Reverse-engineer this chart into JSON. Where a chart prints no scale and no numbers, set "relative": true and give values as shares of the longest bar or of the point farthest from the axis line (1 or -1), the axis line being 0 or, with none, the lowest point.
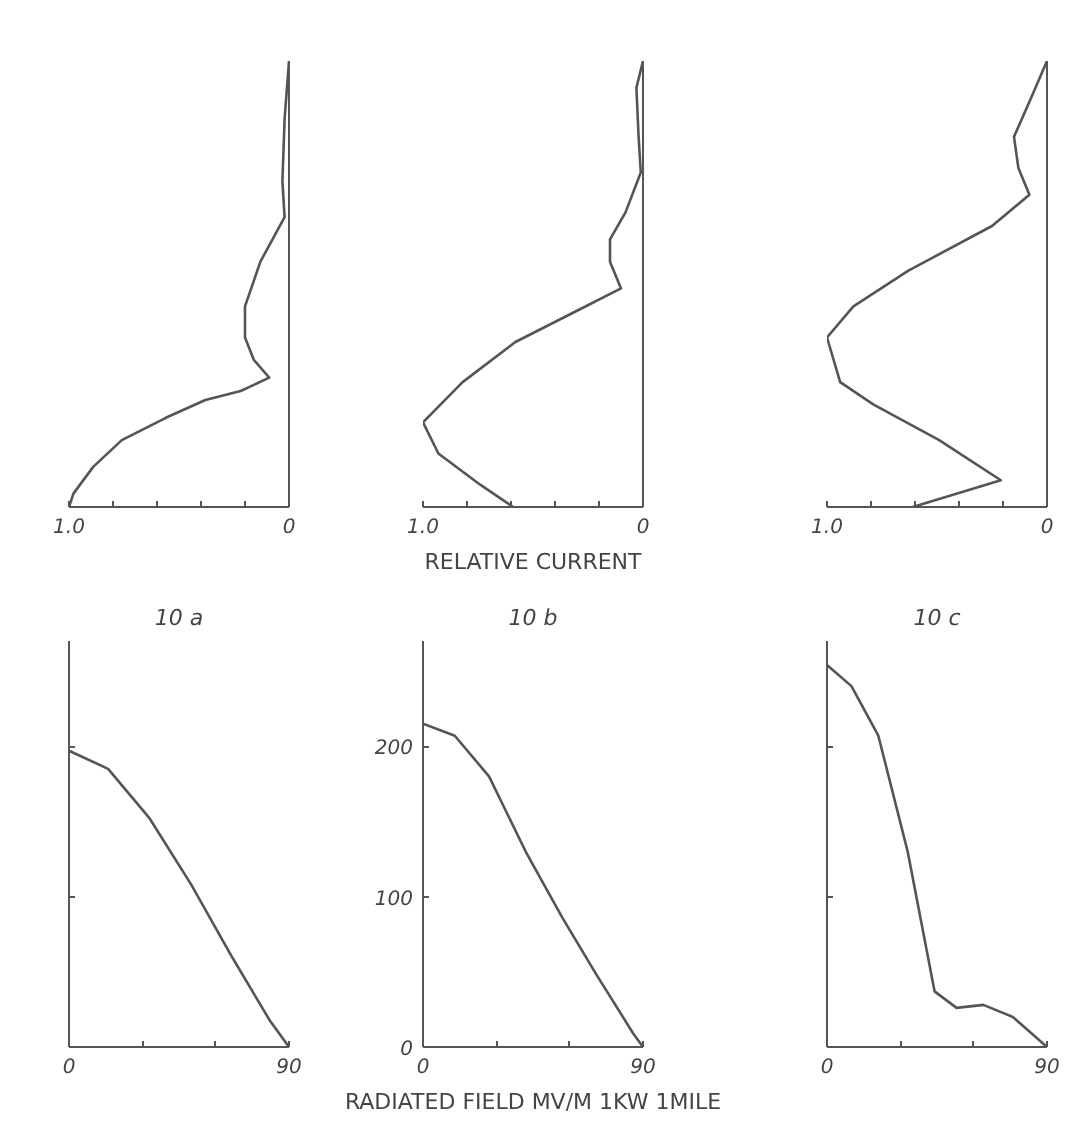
{
  "chart_data": [
    {
      "type": "line",
      "relative": true,
      "xlim": [
        1.0,
        0
      ],
      "xticks": [
        {
          "value": 1.0,
          "label": "1.0"
        },
        {
          "value": 0.8,
          "label": null
        },
        {
          "value": 0.6,
          "label": null
        },
        {
          "value": 0.4,
          "label": null
        },
        {
          "value": 0.2,
          "label": null
        },
        0
      ],
      "series": [
        {
          "color": "#555555",
          "x": [
            0,
            0.02,
            0.03,
            0.02,
            0.13,
            0.2,
            0.2,
            0.16,
            0.09,
            0.22,
            0.38,
            0.56,
            0.76,
            0.89,
            0.98,
            1.0
          ],
          "values": [
            1.0,
            0.87,
            0.73,
            0.65,
            0.55,
            0.45,
            0.38,
            0.33,
            0.29,
            0.26,
            0.24,
            0.2,
            0.15,
            0.09,
            0.03,
            0
          ]
        }
      ]
    },
    {
      "type": "line",
      "relative": true,
      "xlabel": "RELATIVE CURRENT",
      "xlim": [
        1.0,
        0
      ],
      "xticks": [
        {
          "value": 1.0,
          "label": "1.0"
        },
        {
          "value": 0.8,
          "label": null
        },
        {
          "value": 0.6,
          "label": null
        },
        {
          "value": 0.4,
          "label": null
        },
        {
          "value": 0.2,
          "label": null
        },
        0
      ],
      "annotations": [
        "0"
      ],
      "series": [
        {
          "color": "#555555",
          "x": [
            0,
            0.03,
            0.02,
            0.01,
            0.08,
            0.15,
            0.15,
            0.1,
            0.3,
            0.58,
            0.82,
            1.0,
            0.93,
            0.74,
            0.59
          ],
          "values": [
            1.0,
            0.94,
            0.83,
            0.75,
            0.66,
            0.6,
            0.55,
            0.49,
            0.44,
            0.37,
            0.28,
            0.19,
            0.12,
            0.05,
            0
          ]
        }
      ]
    },
    {
      "type": "line",
      "relative": true,
      "xlim": [
        1.0,
        0
      ],
      "xticks": [
        {
          "value": 1.0,
          "label": "1.0"
        },
        {
          "value": 0.8,
          "label": null
        },
        {
          "value": 0.6,
          "label": null
        },
        {
          "value": 0.4,
          "label": null
        },
        {
          "value": 0.2,
          "label": null
        },
        0
      ],
      "annotations": [
        "0"
      ],
      "series": [
        {
          "color": "#555555",
          "x": [
            0,
            0.07,
            0.15,
            0.13,
            0.08,
            0.25,
            0.63,
            0.88,
            1.0,
            0.94,
            0.79,
            0.49,
            0.21,
            0.61
          ],
          "values": [
            1.0,
            0.92,
            0.83,
            0.76,
            0.7,
            0.63,
            0.53,
            0.45,
            0.38,
            0.28,
            0.23,
            0.15,
            0.06,
            0
          ]
        }
      ]
    },
    {
      "type": "line",
      "title": "10 a",
      "xlim": [
        0,
        90
      ],
      "ylim": [
        0,
        270
      ],
      "xticks": [
        0,
        {
          "value": 30,
          "label": null
        },
        {
          "value": 60,
          "label": null
        },
        90
      ],
      "yticks": [
        0,
        100,
        200
      ],
      "tick_labels": "x",
      "series": [
        {
          "color": "#555555",
          "x": [
            0,
            16,
            33,
            50,
            67,
            82,
            90
          ],
          "values": [
            197,
            185,
            152,
            108,
            59,
            18,
            0
          ]
        }
      ]
    },
    {
      "type": "line",
      "title": "10 b",
      "xlabel": "RADIATED FIELD MV/M 1KW 1MILE",
      "xlim": [
        0,
        90
      ],
      "ylim": [
        0,
        270
      ],
      "xticks": [
        0,
        {
          "value": 30,
          "label": null
        },
        {
          "value": 60,
          "label": null
        },
        90
      ],
      "yticks": [
        0,
        100,
        200
      ],
      "series": [
        {
          "color": "#555555",
          "x": [
            0,
            13,
            27,
            42,
            57,
            71,
            86,
            90
          ],
          "values": [
            215,
            207,
            180,
            130,
            86,
            48,
            9,
            0
          ]
        }
      ]
    },
    {
      "type": "line",
      "title": "10 c",
      "xlim": [
        0,
        90
      ],
      "ylim": [
        0,
        270
      ],
      "xticks": [
        0,
        {
          "value": 30,
          "label": null
        },
        {
          "value": 60,
          "label": null
        },
        90
      ],
      "yticks": [
        0,
        100,
        200
      ],
      "tick_labels": "x",
      "series": [
        {
          "color": "#555555",
          "x": [
            0,
            10,
            21,
            33,
            44,
            53,
            64,
            76,
            90
          ],
          "values": [
            254,
            240,
            207,
            130,
            37,
            26,
            28,
            20,
            0
          ]
        }
      ]
    }
  ]
}
